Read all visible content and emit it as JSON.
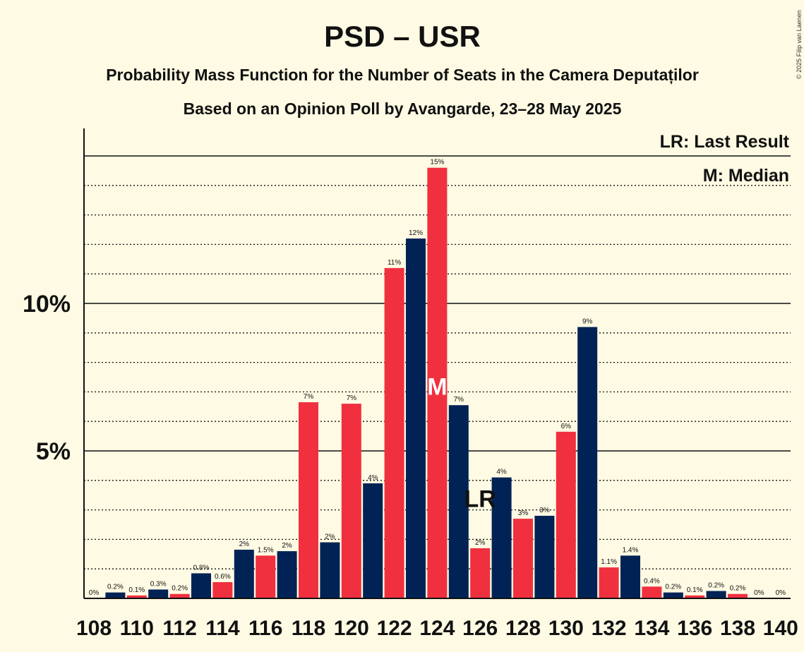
{
  "chart_data": {
    "type": "bar",
    "title": "PSD – USR",
    "subtitle1": "Probability Mass Function for the Number of Seats in the Camera Deputaților",
    "subtitle2": "Based on an Opinion Poll by Avangarde, 23–28 May 2025",
    "copyright": "© 2025 Filip van Laenen",
    "legend": [
      "LR: Last Result",
      "M: Median"
    ],
    "y_ticks": [
      {
        "value": 5,
        "label": "5%"
      },
      {
        "value": 10,
        "label": "10%"
      }
    ],
    "ylim": [
      0,
      16
    ],
    "x_range": [
      108,
      140
    ],
    "x_ticks": [
      "108",
      "110",
      "112",
      "114",
      "116",
      "118",
      "120",
      "122",
      "124",
      "126",
      "128",
      "130",
      "132",
      "134",
      "136",
      "138",
      "140"
    ],
    "bars": [
      {
        "seat": 108,
        "value": 0,
        "label": "0%"
      },
      {
        "seat": 109,
        "value": 0.2,
        "label": "0.2%"
      },
      {
        "seat": 110,
        "value": 0.1,
        "label": "0.1%"
      },
      {
        "seat": 111,
        "value": 0.3,
        "label": "0.3%"
      },
      {
        "seat": 112,
        "value": 0.15,
        "label": "0.2%"
      },
      {
        "seat": 113,
        "value": 0.85,
        "label": "0.8%"
      },
      {
        "seat": 114,
        "value": 0.55,
        "label": "0.6%"
      },
      {
        "seat": 115,
        "value": 1.65,
        "label": "2%"
      },
      {
        "seat": 116,
        "value": 1.45,
        "label": "1.5%"
      },
      {
        "seat": 117,
        "value": 1.6,
        "label": "2%"
      },
      {
        "seat": 118,
        "value": 6.65,
        "label": "7%"
      },
      {
        "seat": 119,
        "value": 1.9,
        "label": "2%"
      },
      {
        "seat": 120,
        "value": 6.6,
        "label": "7%"
      },
      {
        "seat": 121,
        "value": 3.9,
        "label": "4%"
      },
      {
        "seat": 122,
        "value": 11.2,
        "label": "11%"
      },
      {
        "seat": 123,
        "value": 12.2,
        "label": "12%"
      },
      {
        "seat": 124,
        "value": 14.6,
        "label": "15%"
      },
      {
        "seat": 125,
        "value": 6.55,
        "label": "7%"
      },
      {
        "seat": 126,
        "value": 1.7,
        "label": "2%"
      },
      {
        "seat": 127,
        "value": 4.1,
        "label": "4%"
      },
      {
        "seat": 128,
        "value": 2.7,
        "label": "3%"
      },
      {
        "seat": 129,
        "value": 2.8,
        "label": "3%"
      },
      {
        "seat": 130,
        "value": 5.65,
        "label": "6%"
      },
      {
        "seat": 131,
        "value": 9.2,
        "label": "9%"
      },
      {
        "seat": 132,
        "value": 1.05,
        "label": "1.1%"
      },
      {
        "seat": 133,
        "value": 1.45,
        "label": "1.4%"
      },
      {
        "seat": 134,
        "value": 0.4,
        "label": "0.4%"
      },
      {
        "seat": 135,
        "value": 0.2,
        "label": "0.2%"
      },
      {
        "seat": 136,
        "value": 0.1,
        "label": "0.1%"
      },
      {
        "seat": 137,
        "value": 0.25,
        "label": "0.2%"
      },
      {
        "seat": 138,
        "value": 0.15,
        "label": "0.2%"
      },
      {
        "seat": 139,
        "value": 0,
        "label": "0%"
      },
      {
        "seat": 140,
        "value": 0,
        "label": "0%"
      }
    ],
    "median_seat": 124,
    "median_marker": "M",
    "last_result_seat": 126,
    "last_result_marker": "LR",
    "colors": {
      "even": "#f0303f",
      "odd": "#002255",
      "background": "#fefae3",
      "axis": "#111111"
    }
  }
}
